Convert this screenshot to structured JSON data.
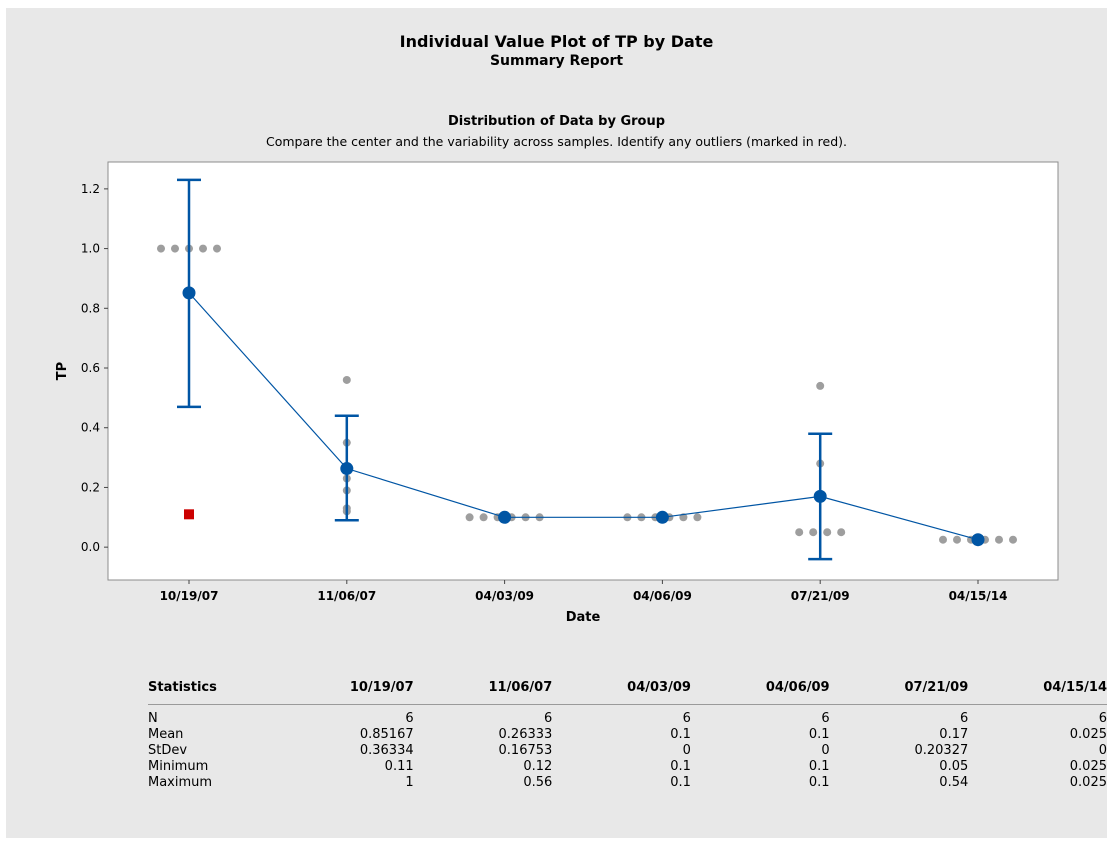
{
  "report": {
    "title": "Individual Value Plot of TP by Date",
    "subtitle": "Summary Report"
  },
  "colors": {
    "background": "#e8e8e8",
    "plot_area": "#ffffff",
    "mean_line": "#0055a4",
    "data_point": "#9e9e9e",
    "outlier": "#cc0000"
  },
  "chart_data": {
    "type": "scatter",
    "title": "Distribution of Data by Group",
    "subtitle": "Compare the center and the variability across samples. Identify any outliers (marked in red).",
    "xlabel": "Date",
    "ylabel": "TP",
    "categories": [
      "10/19/07",
      "11/06/07",
      "04/03/09",
      "04/06/09",
      "07/21/09",
      "04/15/14"
    ],
    "yticks": [
      "0.0",
      "0.2",
      "0.4",
      "0.6",
      "0.8",
      "1.0",
      "1.2"
    ],
    "ylim": [
      -0.11,
      1.29
    ],
    "grid": false,
    "points": [
      [
        1,
        1,
        1,
        1,
        1
      ],
      [
        0.56,
        0.35,
        0.23,
        0.19,
        0.13,
        0.12
      ],
      [
        0.1,
        0.1,
        0.1,
        0.1,
        0.1,
        0.1
      ],
      [
        0.1,
        0.1,
        0.1,
        0.1,
        0.1,
        0.1
      ],
      [
        0.54,
        0.28,
        0.05,
        0.05,
        0.05,
        0.05
      ],
      [
        0.025,
        0.025,
        0.025,
        0.025,
        0.025,
        0.025
      ]
    ],
    "outliers": [
      {
        "category": "10/19/07",
        "value": 0.11
      }
    ],
    "means": [
      0.85167,
      0.26333,
      0.1,
      0.1,
      0.17,
      0.025
    ],
    "intervals": [
      {
        "low": 0.47,
        "high": 1.23
      },
      {
        "low": 0.09,
        "high": 0.44
      },
      null,
      null,
      {
        "low": -0.04,
        "high": 0.38
      },
      null
    ]
  },
  "statistics": {
    "header": [
      "Statistics",
      "10/19/07",
      "11/06/07",
      "04/03/09",
      "04/06/09",
      "07/21/09",
      "04/15/14"
    ],
    "rows": [
      [
        "N",
        "6",
        "6",
        "6",
        "6",
        "6",
        "6"
      ],
      [
        "Mean",
        "0.85167",
        "0.26333",
        "0.1",
        "0.1",
        "0.17",
        "0.025"
      ],
      [
        "StDev",
        "0.36334",
        "0.16753",
        "0",
        "0",
        "0.20327",
        "0"
      ],
      [
        "Minimum",
        "0.11",
        "0.12",
        "0.1",
        "0.1",
        "0.05",
        "0.025"
      ],
      [
        "Maximum",
        "1",
        "0.56",
        "0.1",
        "0.1",
        "0.54",
        "0.025"
      ]
    ]
  }
}
